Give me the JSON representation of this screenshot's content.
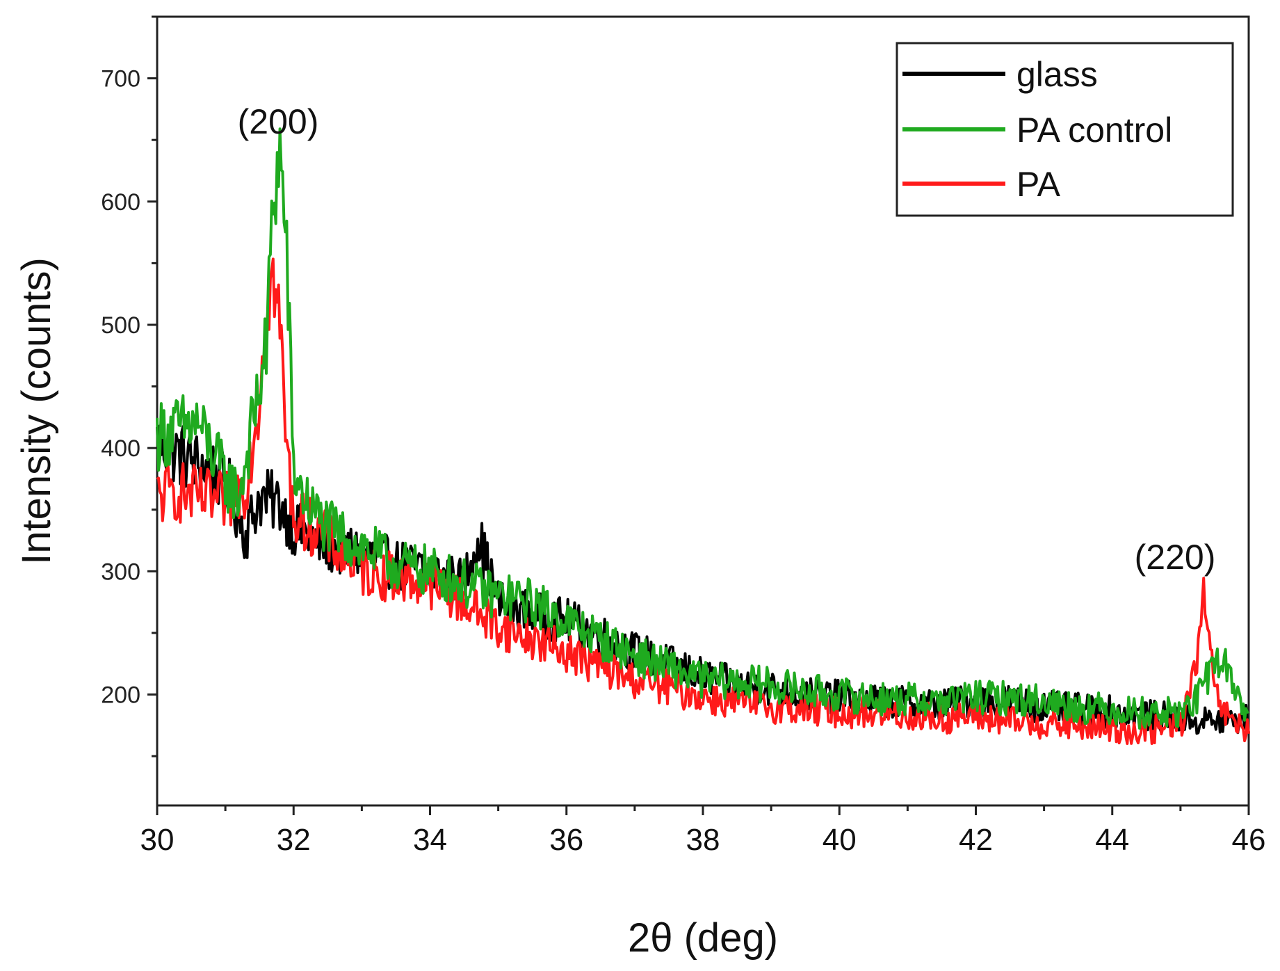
{
  "chart_data": {
    "type": "line",
    "title": "",
    "xlabel": "2θ (deg)",
    "ylabel": "Intensity (counts)",
    "xlim": [
      30,
      46
    ],
    "ylim": [
      110,
      750
    ],
    "x_ticks": [
      30,
      32,
      34,
      36,
      38,
      40,
      42,
      44,
      46
    ],
    "x_tick_labels": [
      "30",
      "32",
      "34",
      "36",
      "38",
      "40",
      "42",
      "44",
      "46"
    ],
    "y_ticks": [
      200,
      300,
      400,
      500,
      600,
      700
    ],
    "y_tick_labels": [
      "200",
      "300",
      "400",
      "500",
      "600",
      "700"
    ],
    "grid": false,
    "legend_position": "top-right",
    "annotations": [
      {
        "text": "(200)",
        "x": 31.8,
        "y": 660
      },
      {
        "text": "(220)",
        "x": 45.3,
        "y": 305
      }
    ],
    "series": [
      {
        "name": "glass",
        "color": "#000000",
        "x": [
          30.0,
          30.5,
          31.0,
          31.3,
          31.5,
          31.8,
          32.0,
          32.5,
          33.0,
          33.5,
          34.0,
          34.5,
          34.7,
          35.0,
          35.5,
          36.0,
          36.5,
          37.0,
          37.5,
          38.0,
          38.5,
          39.0,
          39.5,
          40.0,
          40.5,
          41.0,
          41.5,
          42.0,
          42.5,
          43.0,
          43.5,
          44.0,
          44.5,
          45.0,
          45.5,
          46.0
        ],
        "y": [
          405,
          390,
          375,
          330,
          360,
          355,
          335,
          320,
          315,
          305,
          300,
          290,
          330,
          275,
          265,
          260,
          248,
          235,
          225,
          215,
          208,
          205,
          200,
          198,
          195,
          193,
          192,
          195,
          195,
          190,
          188,
          186,
          183,
          180,
          178,
          180
        ]
      },
      {
        "name": "PA control",
        "color": "#1faa1f",
        "x": [
          30.0,
          30.3,
          30.6,
          31.0,
          31.2,
          31.4,
          31.6,
          31.7,
          31.8,
          31.9,
          32.0,
          32.2,
          32.5,
          33.0,
          33.5,
          34.0,
          34.5,
          35.0,
          35.5,
          36.0,
          36.5,
          37.0,
          37.5,
          38.0,
          38.5,
          39.0,
          39.5,
          40.0,
          40.5,
          41.0,
          41.5,
          42.0,
          42.5,
          43.0,
          43.5,
          44.0,
          44.5,
          45.0,
          45.3,
          45.5,
          45.7,
          46.0
        ],
        "y": [
          410,
          415,
          420,
          375,
          360,
          420,
          480,
          600,
          640,
          560,
          380,
          355,
          335,
          320,
          305,
          300,
          290,
          280,
          275,
          260,
          245,
          232,
          222,
          212,
          210,
          208,
          203,
          200,
          197,
          196,
          195,
          198,
          197,
          195,
          190,
          188,
          185,
          185,
          200,
          230,
          220,
          180
        ]
      },
      {
        "name": "PA",
        "color": "#ff1a1a",
        "x": [
          30.0,
          30.3,
          30.6,
          31.0,
          31.3,
          31.5,
          31.6,
          31.7,
          31.8,
          31.9,
          32.0,
          32.3,
          32.6,
          33.0,
          33.5,
          34.0,
          34.5,
          35.0,
          35.5,
          36.0,
          36.5,
          37.0,
          37.5,
          38.0,
          38.5,
          39.0,
          39.5,
          40.0,
          40.5,
          41.0,
          41.5,
          42.0,
          42.5,
          43.0,
          43.5,
          44.0,
          44.5,
          45.0,
          45.2,
          45.35,
          45.5,
          45.7,
          46.0
        ],
        "y": [
          360,
          365,
          360,
          355,
          370,
          440,
          520,
          540,
          500,
          400,
          345,
          335,
          320,
          300,
          295,
          290,
          275,
          255,
          245,
          235,
          222,
          212,
          205,
          198,
          193,
          190,
          188,
          186,
          185,
          183,
          180,
          182,
          178,
          176,
          174,
          172,
          170,
          175,
          215,
          280,
          200,
          180,
          170
        ]
      }
    ]
  }
}
